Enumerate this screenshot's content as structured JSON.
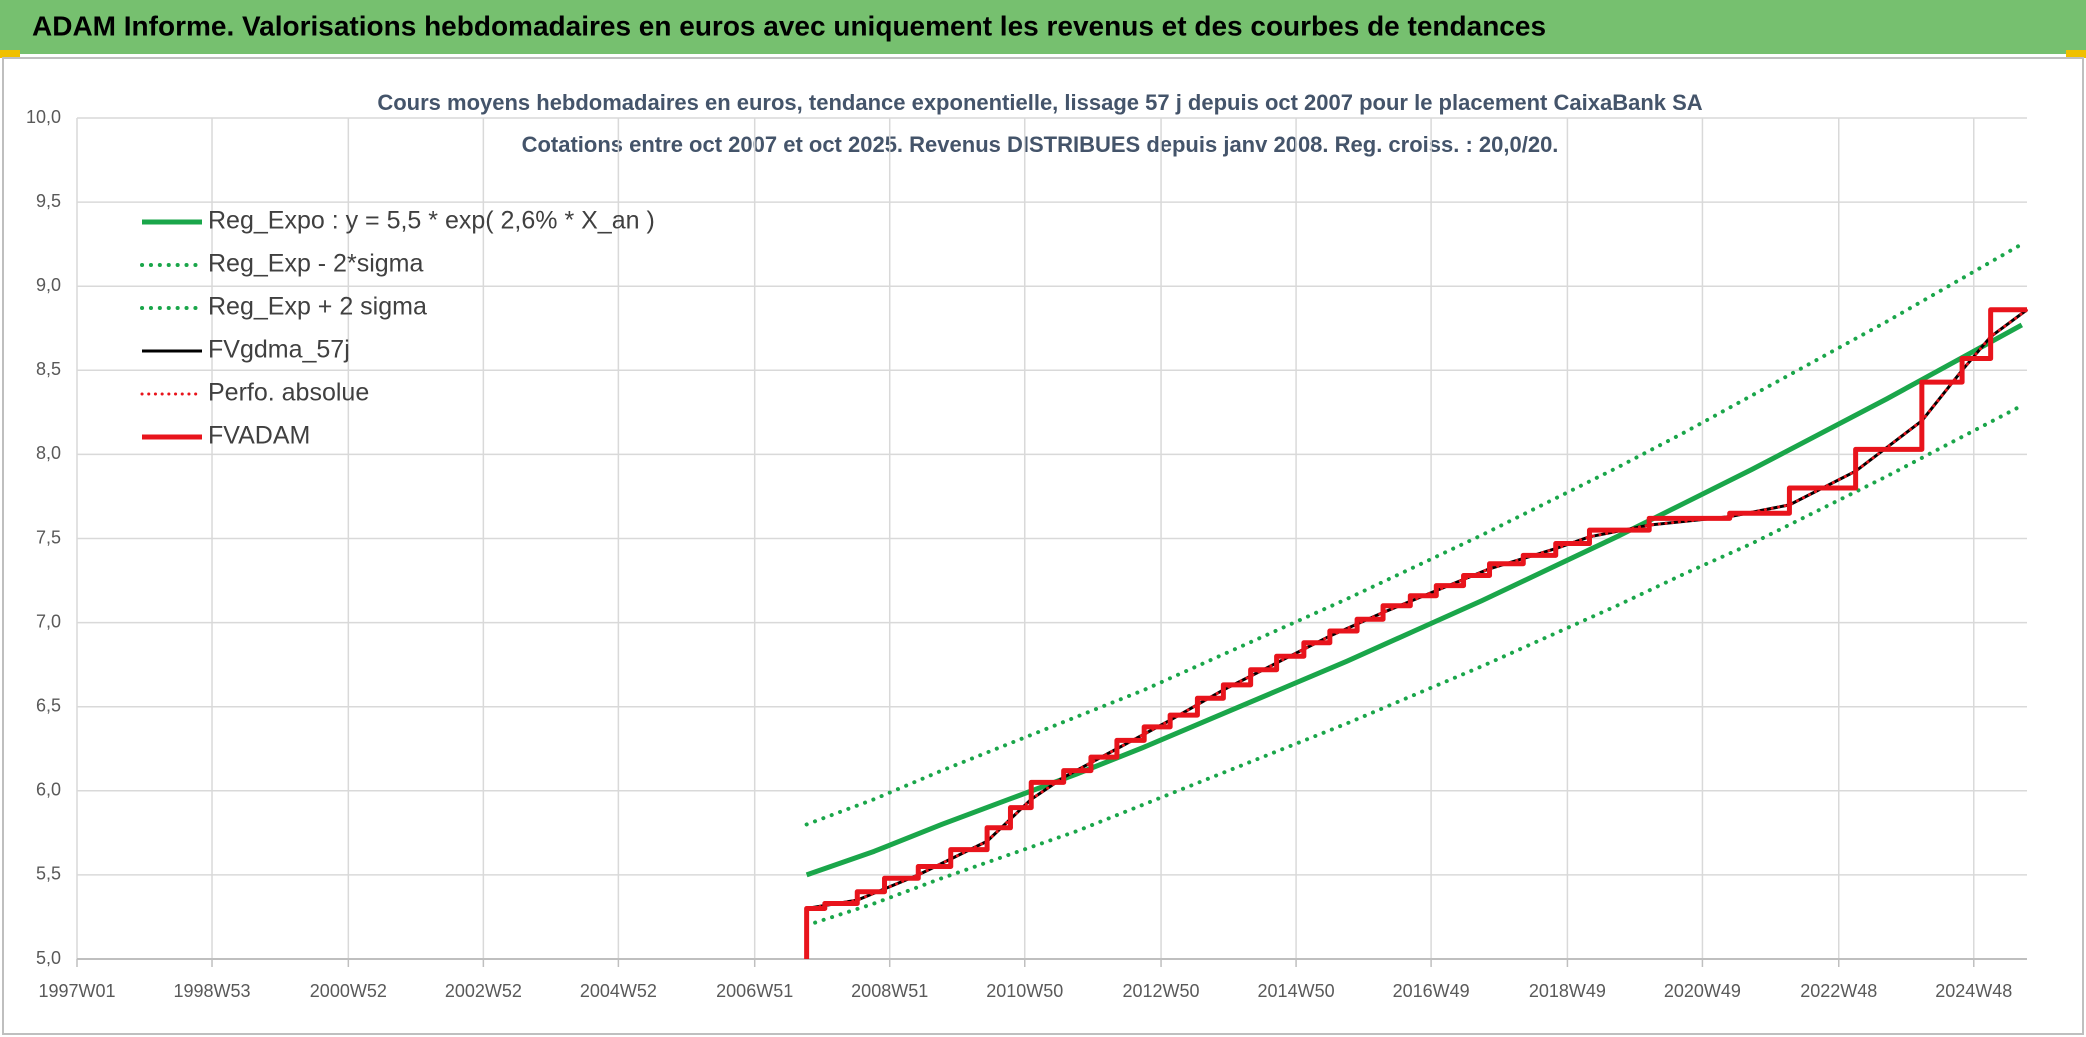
{
  "chart_data": {
    "type": "line",
    "header": "ADAM Informe. Valorisations hebdomadaires en euros avec uniquement les revenus et des courbes de tendances",
    "title": "Cours moyens hebdomadaires en euros, tendance exponentielle, lissage 57 j depuis oct 2007 pour le placement CaixaBank SA",
    "subtitle": "Cotations entre oct 2007 et oct 2025. Revenus DISTRIBUES depuis janv 2008. Reg. croiss. : 20,0/20.",
    "xlim": [
      0,
      1502
    ],
    "xticks": [
      {
        "value": 0,
        "label": "1997W01"
      },
      {
        "value": 104,
        "label": "1998W53"
      },
      {
        "value": 209,
        "label": "2000W52"
      },
      {
        "value": 313,
        "label": "2002W52"
      },
      {
        "value": 417,
        "label": "2004W52"
      },
      {
        "value": 522,
        "label": "2006W51"
      },
      {
        "value": 626,
        "label": "2008W51"
      },
      {
        "value": 730,
        "label": "2010W50"
      },
      {
        "value": 835,
        "label": "2012W50"
      },
      {
        "value": 939,
        "label": "2014W50"
      },
      {
        "value": 1043,
        "label": "2016W49"
      },
      {
        "value": 1148,
        "label": "2018W49"
      },
      {
        "value": 1252,
        "label": "2020W49"
      },
      {
        "value": 1357,
        "label": "2022W48"
      },
      {
        "value": 1461,
        "label": "2024W48"
      }
    ],
    "ylim": [
      5,
      10
    ],
    "yticks": [
      {
        "value": 5,
        "label": "5,0"
      },
      {
        "value": 5.5,
        "label": "5,5"
      },
      {
        "value": 6,
        "label": "6,0"
      },
      {
        "value": 6.5,
        "label": "6,5"
      },
      {
        "value": 7,
        "label": "7,0"
      },
      {
        "value": 7.5,
        "label": "7,5"
      },
      {
        "value": 8,
        "label": "8,0"
      },
      {
        "value": 8.5,
        "label": "8,5"
      },
      {
        "value": 9,
        "label": "9,0"
      },
      {
        "value": 9.5,
        "label": "9,5"
      },
      {
        "value": 10,
        "label": "10,0"
      }
    ],
    "grid": true,
    "legend": "upper left",
    "series": [
      {
        "name": "Reg_Expo : y = 5,5 * exp( 2,6% *  X_an )",
        "color": "#1aa64a",
        "style": "solid",
        "linewidth": 5,
        "x": [
          562,
          614,
          666,
          718,
          770,
          822,
          874,
          926,
          978,
          1030,
          1082,
          1134,
          1186,
          1238,
          1290,
          1342,
          1394,
          1446,
          1498
        ],
        "values": [
          5.5,
          5.64,
          5.8,
          5.95,
          6.1,
          6.26,
          6.43,
          6.6,
          6.77,
          6.95,
          7.13,
          7.32,
          7.51,
          7.71,
          7.91,
          8.12,
          8.33,
          8.55,
          8.77
        ]
      },
      {
        "name": "Reg_Exp - 2*sigma",
        "color": "#1aa64a",
        "style": "dotted",
        "linewidth": 4,
        "x": [
          562,
          614,
          666,
          718,
          770,
          822,
          874,
          926,
          978,
          1030,
          1082,
          1134,
          1186,
          1238,
          1290,
          1342,
          1394,
          1446,
          1498
        ],
        "values": [
          5.2,
          5.33,
          5.48,
          5.62,
          5.76,
          5.92,
          6.08,
          6.24,
          6.4,
          6.57,
          6.74,
          6.92,
          7.1,
          7.29,
          7.47,
          7.67,
          7.87,
          8.08,
          8.29
        ]
      },
      {
        "name": "Reg_Exp + 2 sigma",
        "color": "#1aa64a",
        "style": "dotted",
        "linewidth": 4,
        "x": [
          562,
          614,
          666,
          718,
          770,
          822,
          874,
          926,
          978,
          1030,
          1082,
          1134,
          1186,
          1238,
          1290,
          1342,
          1394,
          1446,
          1498
        ],
        "values": [
          5.8,
          5.95,
          6.12,
          6.28,
          6.44,
          6.6,
          6.78,
          6.96,
          7.14,
          7.33,
          7.52,
          7.72,
          7.92,
          8.13,
          8.35,
          8.57,
          8.79,
          9.02,
          9.25
        ]
      },
      {
        "name": "FVgdma_57j",
        "color": "#000000",
        "style": "solid",
        "linewidth": 3,
        "x": [
          562,
          601,
          648,
          701,
          735,
          760,
          801,
          842,
          883,
          924,
          965,
          1006,
          1047,
          1088,
          1139,
          1165,
          1211,
          1273,
          1319,
          1370,
          1421,
          1452,
          1474,
          1502
        ],
        "values": [
          5.3,
          5.35,
          5.5,
          5.7,
          5.95,
          6.08,
          6.25,
          6.42,
          6.6,
          6.76,
          6.92,
          7.06,
          7.19,
          7.32,
          7.44,
          7.51,
          7.58,
          7.63,
          7.7,
          7.9,
          8.2,
          8.5,
          8.7,
          8.86
        ]
      },
      {
        "name": "Perfo. absolue",
        "color": "#e8141c",
        "style": "dotted",
        "linewidth": 3,
        "x": [
          562,
          601,
          648,
          701,
          735,
          760,
          801,
          842,
          883,
          924,
          965,
          1006,
          1047,
          1088,
          1139,
          1165,
          1211,
          1273,
          1319,
          1370,
          1421,
          1452,
          1474,
          1502
        ],
        "values": [
          5.3,
          5.35,
          5.5,
          5.7,
          5.95,
          6.08,
          6.25,
          6.42,
          6.6,
          6.76,
          6.92,
          7.06,
          7.19,
          7.32,
          7.44,
          7.51,
          7.58,
          7.63,
          7.7,
          7.9,
          8.2,
          8.5,
          8.7,
          8.86
        ]
      },
      {
        "name": "FVADAM",
        "color": "#e8141c",
        "style": "solid",
        "linewidth": 5,
        "x": [
          562,
          562,
          576,
          576,
          601,
          601,
          622,
          622,
          648,
          648,
          673,
          673,
          701,
          701,
          719,
          719,
          735,
          735,
          760,
          760,
          781,
          781,
          801,
          801,
          822,
          822,
          842,
          842,
          863,
          863,
          883,
          883,
          904,
          904,
          924,
          924,
          945,
          945,
          965,
          965,
          986,
          986,
          1006,
          1006,
          1027,
          1027,
          1047,
          1047,
          1068,
          1068,
          1088,
          1088,
          1114,
          1114,
          1139,
          1139,
          1165,
          1165,
          1211,
          1211,
          1273,
          1273,
          1319,
          1319,
          1370,
          1370,
          1421,
          1421,
          1452,
          1452,
          1474,
          1474,
          1502
        ],
        "values": [
          5.0,
          5.3,
          5.3,
          5.33,
          5.33,
          5.4,
          5.4,
          5.48,
          5.48,
          5.55,
          5.55,
          5.65,
          5.65,
          5.78,
          5.78,
          5.9,
          5.9,
          6.05,
          6.05,
          6.12,
          6.12,
          6.2,
          6.2,
          6.3,
          6.3,
          6.38,
          6.38,
          6.45,
          6.45,
          6.55,
          6.55,
          6.63,
          6.63,
          6.72,
          6.72,
          6.8,
          6.8,
          6.88,
          6.88,
          6.95,
          6.95,
          7.02,
          7.02,
          7.1,
          7.1,
          7.16,
          7.16,
          7.22,
          7.22,
          7.28,
          7.28,
          7.35,
          7.35,
          7.4,
          7.4,
          7.47,
          7.47,
          7.55,
          7.55,
          7.62,
          7.62,
          7.65,
          7.65,
          7.8,
          7.8,
          8.03,
          8.03,
          8.43,
          8.43,
          8.57,
          8.57,
          8.86,
          8.86
        ]
      }
    ]
  }
}
